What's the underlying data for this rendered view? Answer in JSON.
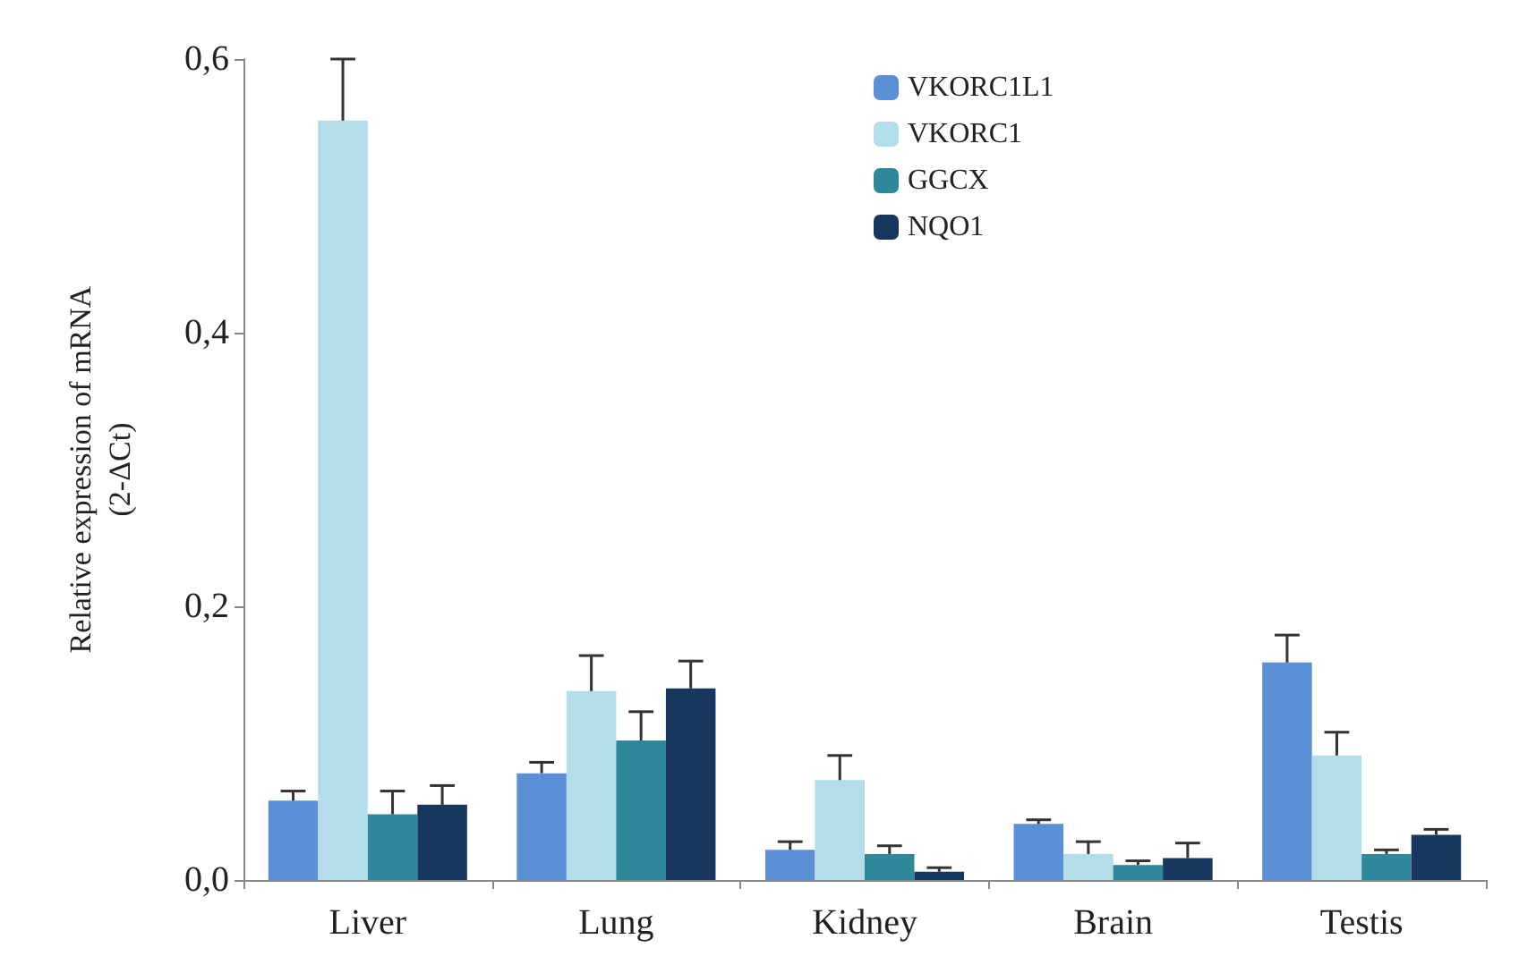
{
  "chart_data": {
    "type": "bar",
    "ylabel": "Relative expression of mRNA\n(2-ΔCt)",
    "categories": [
      "Liver",
      "Lung",
      "Kidney",
      "Brain",
      "Testis"
    ],
    "series": [
      {
        "name": "VKORC1L1",
        "color": "#5b8fd6",
        "values": [
          0.058,
          0.078,
          0.022,
          0.041,
          0.159
        ],
        "errors": [
          [
            0.058,
            0.065
          ],
          [
            0.078,
            0.086
          ],
          [
            0.022,
            0.028
          ],
          [
            0.041,
            0.044
          ],
          [
            0.159,
            0.179
          ]
        ]
      },
      {
        "name": "VKORC1",
        "color": "#b3dde8",
        "values": [
          0.555,
          0.138,
          0.073,
          0.019,
          0.091
        ],
        "errors": [
          [
            0.555,
            0.6
          ],
          [
            0.138,
            0.164
          ],
          [
            0.073,
            0.091
          ],
          [
            0.019,
            0.028
          ],
          [
            0.091,
            0.108
          ]
        ]
      },
      {
        "name": "GGCX",
        "color": "#2e8899",
        "values": [
          0.048,
          0.102,
          0.019,
          0.011,
          0.019
        ],
        "errors": [
          [
            0.048,
            0.065
          ],
          [
            0.102,
            0.123
          ],
          [
            0.019,
            0.025
          ],
          [
            0.011,
            0.014
          ],
          [
            0.019,
            0.022
          ]
        ]
      },
      {
        "name": "NQO1",
        "color": "#17375e",
        "values": [
          0.055,
          0.14,
          0.006,
          0.016,
          0.033
        ],
        "errors": [
          [
            0.055,
            0.069
          ],
          [
            0.14,
            0.16
          ],
          [
            0.006,
            0.009
          ],
          [
            0.016,
            0.027
          ],
          [
            0.033,
            0.037
          ]
        ]
      }
    ],
    "ylim": [
      0,
      0.6
    ],
    "yticks": [
      {
        "value": 0,
        "label": "0,0"
      },
      {
        "value": 0.2,
        "label": "0,2"
      },
      {
        "value": 0.4,
        "label": "0,4"
      },
      {
        "value": 0.6,
        "label": "0,6"
      }
    ],
    "grid": false,
    "legend": "top right"
  }
}
